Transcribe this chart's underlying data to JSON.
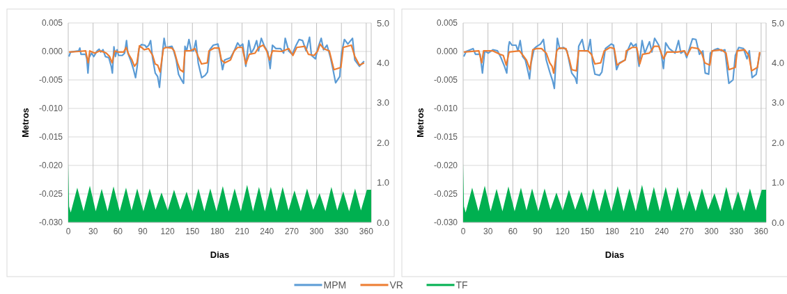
{
  "chart_data": [
    {
      "type": "line",
      "xlabel": "Dias",
      "ylabel": "Metros",
      "xlim": [
        0,
        366
      ],
      "xticks": [
        0,
        30,
        60,
        90,
        120,
        150,
        180,
        210,
        240,
        270,
        300,
        330,
        360
      ],
      "ylim": [
        -0.03,
        0.005
      ],
      "yticks": [
        {
          "value": -0.03,
          "label": "-0.030"
        },
        {
          "value": -0.025,
          "label": "-0.025"
        },
        {
          "value": -0.02,
          "label": "-0.020"
        },
        {
          "value": -0.015,
          "label": "-0.015"
        },
        {
          "value": -0.01,
          "label": "-0.010"
        },
        {
          "value": -0.005,
          "label": "-0.005"
        },
        {
          "value": 0,
          "label": "0.000"
        },
        {
          "value": 0.005,
          "label": "0.005"
        }
      ],
      "y2lim": [
        0,
        5
      ],
      "y2ticks": [
        {
          "value": 0,
          "label": "0.0"
        },
        {
          "value": 1,
          "label": "1.0"
        },
        {
          "value": 2,
          "label": "2.0"
        },
        {
          "value": 3,
          "label": "3.0"
        },
        {
          "value": 4,
          "label": "4.0"
        },
        {
          "value": 5,
          "label": "5.0"
        }
      ],
      "grid": true,
      "legend": "bottom",
      "series": [
        {
          "name": "TF",
          "type": "area",
          "axis": "y2",
          "color": "#00b050",
          "x": [
            0,
            1,
            3,
            10.9,
            18.5,
            26.1,
            33.2,
            40.4,
            47.5,
            54.7,
            62.2,
            69.8,
            76.5,
            83.3,
            90.8,
            98.4,
            105.5,
            112.7,
            120.2,
            127.8,
            135.4,
            143,
            150.1,
            157.3,
            164.4,
            171.6,
            179.1,
            186.7,
            193.8,
            201,
            208.5,
            216.1,
            223.2,
            230.4,
            237.5,
            244.7,
            251.8,
            259,
            266.1,
            273.3,
            280.9,
            288.5,
            296,
            303.6,
            310.7,
            317.9,
            325,
            332.2,
            339.3,
            346.5,
            353.6,
            360.8,
            366
          ],
          "values": [
            1.48,
            0.4,
            0.25,
            0.87,
            0.28,
            0.92,
            0.28,
            0.84,
            0.28,
            0.9,
            0.28,
            0.87,
            0.3,
            0.85,
            0.28,
            0.85,
            0.32,
            0.75,
            0.3,
            0.82,
            0.32,
            0.77,
            0.28,
            0.85,
            0.28,
            0.85,
            0.28,
            0.91,
            0.28,
            0.85,
            0.28,
            0.94,
            0.28,
            0.89,
            0.28,
            0.89,
            0.28,
            0.89,
            0.3,
            0.8,
            0.28,
            0.85,
            0.32,
            0.73,
            0.28,
            0.89,
            0.3,
            0.78,
            0.28,
            0.85,
            0.3,
            0.82,
            0.82
          ]
        },
        {
          "name": "MPM",
          "color": "#5b9bd5",
          "x": [
            0.8,
            2.8,
            12.6,
            14,
            15.4,
            21,
            22.4,
            23.8,
            25.2,
            28,
            30.8,
            35,
            37.3,
            39.2,
            42,
            44.9,
            49,
            51.9,
            53.3,
            55.2,
            56.9,
            58.9,
            60.8,
            65.3,
            68.1,
            70.4,
            72,
            75.7,
            78.5,
            81.3,
            83.3,
            85.5,
            88.3,
            92.5,
            94.5,
            97.3,
            99.5,
            101.8,
            105.1,
            108,
            110.2,
            112.1,
            114.1,
            115.8,
            117.7,
            122,
            125.3,
            127,
            130.4,
            133.2,
            136,
            139.3,
            141,
            143,
            145.8,
            148.6,
            151.4,
            154.2,
            157,
            161.2,
            165.4,
            168.2,
            171,
            175.2,
            180.8,
            183.6,
            186.4,
            189,
            196,
            200.5,
            204.6,
            207.5,
            210.8,
            214.5,
            218.1,
            220.9,
            224.3,
            227.6,
            229.9,
            233.2,
            237,
            241.1,
            243.9,
            246.7,
            250.9,
            256.5,
            260.2,
            262.1,
            266.3,
            270.5,
            274.7,
            278.9,
            283.1,
            287.3,
            291.5,
            293.8,
            298.6,
            301.4,
            305.6,
            308.4,
            312.6,
            316.8,
            319.6,
            323,
            328,
            330.2,
            333.6,
            337.8,
            343.4,
            346.2,
            351.8,
            357.4
          ],
          "values": [
            -0.0009,
            -0.0001,
            0.0001,
            0.0006,
            -0.0005,
            -0.0005,
            -0.0013,
            -0.0038,
            -0.0011,
            -0.0003,
            -0.0009,
            0.0001,
            0.0004,
            -0.0001,
            0.0003,
            -0.0009,
            -0.0011,
            -0.0026,
            -0.0038,
            0.0008,
            -0.0009,
            0.0003,
            -0.0007,
            -0.0007,
            -0.0003,
            0.0019,
            -0.0003,
            -0.0017,
            -0.003,
            -0.0046,
            -0.0026,
            0.0005,
            0.0012,
            0.0011,
            0.0007,
            0.0011,
            0.0019,
            -0.0011,
            -0.0038,
            -0.0044,
            -0.0063,
            -0.0032,
            0.0001,
            0.0023,
            0.0007,
            0.0008,
            0.0009,
            0.0003,
            -0.0015,
            -0.004,
            -0.0048,
            -0.0056,
            0.0009,
            0.0001,
            0.0021,
            0.0001,
            0.0001,
            0.0019,
            -0.002,
            -0.0046,
            -0.0042,
            -0.0036,
            0.0003,
            0.0011,
            0.0013,
            -0.0007,
            -0.0032,
            -0.0015,
            -0.0011,
            0.0001,
            0.0015,
            0.0009,
            0.0013,
            -0.0026,
            0.0019,
            -0.0003,
            0.0005,
            0.0019,
            0.0001,
            0.0023,
            0.0009,
            -0.0001,
            -0.003,
            0.0011,
            0.0005,
            0.0005,
            -0.0003,
            0.0023,
            0.0001,
            -0.0005,
            0.0009,
            0.0021,
            0.0019,
            0.0001,
            0.0025,
            -0.0007,
            -0.0013,
            0.0005,
            0.0023,
            0.0003,
            0.0011,
            -0.0011,
            -0.003,
            -0.0055,
            -0.0044,
            -0.0003,
            0.0021,
            0.0013,
            0.0023,
            -0.0015,
            -0.0026,
            -0.0017
          ]
        },
        {
          "name": "VR",
          "color": "#ed7d31",
          "x": [
            1,
            13,
            21,
            24,
            26,
            32,
            38,
            43,
            46,
            50,
            53,
            56,
            60,
            67,
            70,
            73,
            77,
            80,
            83,
            86,
            92,
            97,
            102,
            105,
            108,
            111,
            113,
            115,
            118,
            125,
            128,
            132,
            135,
            139,
            141,
            147,
            153,
            157,
            161,
            168,
            170,
            176.6,
            182.2,
            185,
            189,
            196,
            200.5,
            204.6,
            210.3,
            214.5,
            218.7,
            225.7,
            229.9,
            235.5,
            239.7,
            243.3,
            246.7,
            257.9,
            266.3,
            271.4,
            276.1,
            285.9,
            290.1,
            297.1,
            301.4,
            304.2,
            308.4,
            315.4,
            321,
            329.4,
            332.2,
            342,
            346.2,
            351.8,
            357.4
          ],
          "values": [
            -0.0001,
            0,
            0.0001,
            -0.002,
            0.0001,
            -0.0003,
            0.0001,
            -0.0001,
            -0.0003,
            -0.0009,
            -0.002,
            0.0001,
            -0.0001,
            -0.0001,
            0.0007,
            -0.0005,
            -0.0015,
            -0.0026,
            -0.002,
            0.001,
            0.0003,
            0.0005,
            -0.0007,
            -0.0022,
            -0.0024,
            -0.0036,
            -0.0015,
            0.0005,
            0.0007,
            0.0006,
            0.0001,
            -0.002,
            -0.0032,
            -0.0036,
            0.0001,
            0.0001,
            0.0005,
            -0.0009,
            -0.0022,
            -0.002,
            0.0001,
            0.0006,
            0.0006,
            -0.0015,
            -0.002,
            -0.0015,
            0.0001,
            0.0007,
            0.0007,
            -0.0022,
            -0.0005,
            -0.0003,
            0.0007,
            0.0011,
            0.0001,
            -0.0015,
            0.0001,
            0,
            0.0005,
            -0.0007,
            0.0007,
            0.0009,
            -0.0005,
            -0.0007,
            0.0001,
            0.0013,
            0.0005,
            0.0001,
            -0.0032,
            -0.0028,
            0.0007,
            0.0011,
            -0.0009,
            -0.0024,
            -0.002
          ]
        }
      ]
    },
    {
      "type": "line",
      "xlabel": "Dias",
      "ylabel": "Metros",
      "xlim": [
        0,
        366
      ],
      "xticks": [
        0,
        30,
        60,
        90,
        120,
        150,
        180,
        210,
        240,
        270,
        300,
        330,
        360
      ],
      "ylim": [
        -0.03,
        0.005
      ],
      "yticks": [
        {
          "value": -0.03,
          "label": "-0.030"
        },
        {
          "value": -0.025,
          "label": "-0.025"
        },
        {
          "value": -0.02,
          "label": "-0.020"
        },
        {
          "value": -0.015,
          "label": "-0.015"
        },
        {
          "value": -0.01,
          "label": "-0.010"
        },
        {
          "value": -0.005,
          "label": "-0.005"
        },
        {
          "value": 0,
          "label": "0.000"
        },
        {
          "value": 0.005,
          "label": "0.005"
        }
      ],
      "y2lim": [
        0,
        5
      ],
      "y2ticks": [
        {
          "value": 0,
          "label": "0.0"
        },
        {
          "value": 1,
          "label": "1.0"
        },
        {
          "value": 2,
          "label": "2.0"
        },
        {
          "value": 3,
          "label": "3.0"
        },
        {
          "value": 4,
          "label": "4.0"
        },
        {
          "value": 5,
          "label": "5.0"
        }
      ],
      "grid": true,
      "series": [
        {
          "type": "area",
          "axis": "y2",
          "color": "#00b050",
          "x": [
            0,
            1,
            3,
            10.9,
            18.5,
            26.1,
            33.2,
            40.4,
            47.5,
            54.7,
            62.2,
            69.8,
            76.5,
            83.3,
            90.8,
            98.4,
            105.5,
            112.7,
            120.2,
            127.8,
            135.4,
            143,
            150.1,
            157.3,
            164.4,
            171.6,
            179.1,
            186.7,
            193.8,
            201,
            208.5,
            216.1,
            223.2,
            230.4,
            237.5,
            244.7,
            251.8,
            259,
            266.1,
            273.3,
            280.9,
            288.5,
            296,
            303.6,
            310.7,
            317.9,
            325,
            332.2,
            339.3,
            346.5,
            353.6,
            360.8,
            366
          ],
          "values": [
            1.48,
            0.4,
            0.25,
            0.87,
            0.28,
            0.92,
            0.28,
            0.84,
            0.28,
            0.9,
            0.28,
            0.87,
            0.3,
            0.85,
            0.28,
            0.85,
            0.32,
            0.75,
            0.3,
            0.82,
            0.32,
            0.77,
            0.28,
            0.85,
            0.28,
            0.85,
            0.28,
            0.91,
            0.28,
            0.85,
            0.28,
            0.94,
            0.28,
            0.89,
            0.28,
            0.89,
            0.28,
            0.89,
            0.3,
            0.8,
            0.28,
            0.85,
            0.32,
            0.73,
            0.28,
            0.89,
            0.3,
            0.78,
            0.28,
            0.85,
            0.3,
            0.82,
            0.82
          ]
        },
        {
          "color": "#5b9bd5",
          "x": [
            0.8,
            3.6,
            12,
            14.9,
            20.5,
            23.3,
            26.1,
            30.3,
            35.9,
            41.5,
            45.7,
            49.9,
            52.7,
            54.9,
            56,
            58.9,
            63.9,
            66.2,
            68.9,
            71.8,
            75.1,
            78.5,
            80.2,
            82.1,
            85.8,
            89.1,
            93.4,
            97,
            100.4,
            104.6,
            108.2,
            110.2,
            112.1,
            113.8,
            116.6,
            121.4,
            125.5,
            128.4,
            131.2,
            135.4,
            137.4,
            139.6,
            143.8,
            146.6,
            150.8,
            153.6,
            156.4,
            159.2,
            164.8,
            167.6,
            171.9,
            178.9,
            181.7,
            185.3,
            188.7,
            195.7,
            198.5,
            202.7,
            205.5,
            208.9,
            212.5,
            216.2,
            219.5,
            225.1,
            228,
            231.3,
            236.3,
            239.2,
            242,
            244.7,
            249,
            256,
            260.2,
            263,
            267.2,
            270,
            274.2,
            277,
            281.2,
            285.4,
            289.6,
            292.4,
            296.6,
            298.6,
            303.6,
            307.8,
            312,
            316.2,
            321,
            326,
            328.8,
            333,
            338.7,
            342.9,
            345.7,
            349.1,
            354.1,
            358.3
          ],
          "values": [
            -0.0009,
            0,
            0.0005,
            -0.0005,
            -0.0005,
            -0.0038,
            0.0001,
            -0.0003,
            0.0003,
            0.0001,
            -0.0011,
            -0.0026,
            -0.0038,
            0.0009,
            0.0017,
            0.0011,
            0.0011,
            0.0001,
            0.0019,
            -0.0009,
            -0.0015,
            -0.0036,
            -0.0048,
            -0.002,
            0.0005,
            0.0009,
            0.0013,
            0.0021,
            -0.0015,
            -0.0036,
            -0.0052,
            -0.0065,
            -0.0015,
            0.0023,
            0.0005,
            0.0007,
            0.0001,
            -0.002,
            -0.0038,
            -0.0046,
            -0.0056,
            0.0009,
            0.0021,
            0.0001,
            0.0001,
            0.0021,
            -0.002,
            -0.004,
            -0.0042,
            -0.0036,
            0.0005,
            0.0013,
            0.0011,
            -0.0032,
            -0.002,
            -0.0015,
            0.0001,
            0.0015,
            0.0009,
            0.0013,
            -0.0026,
            0.0019,
            -0.0003,
            0.0017,
            -0.0001,
            0.0023,
            0.0011,
            -0.0003,
            -0.003,
            0.0015,
            0.0005,
            -0.0003,
            0.0019,
            -0.0003,
            0.0001,
            -0.0011,
            0.0009,
            0.0022,
            0.0021,
            -0.0005,
            0.0001,
            -0.0038,
            -0.004,
            -0.0003,
            0.0003,
            0.0005,
            0.0001,
            0.0003,
            -0.0056,
            -0.005,
            -0.0007,
            0.0007,
            0.0005,
            -0.0013,
            0.0001,
            -0.0046,
            -0.004,
            -0.0003
          ]
        },
        {
          "color": "#ed7d31",
          "x": [
            0.8,
            19,
            22.4,
            24.7,
            35.9,
            44.3,
            48.5,
            52.1,
            55.5,
            68.1,
            72.3,
            76.5,
            80.7,
            84.1,
            89.1,
            94.7,
            100.4,
            104.6,
            107.4,
            109.4,
            113,
            115.8,
            124.2,
            128.4,
            131.2,
            136.8,
            139.6,
            150.8,
            155,
            159.2,
            166.2,
            170.5,
            177.5,
            182.5,
            185.9,
            190.1,
            195.7,
            197.1,
            204.1,
            209.7,
            213.4,
            216.8,
            225.1,
            230.8,
            236.3,
            242,
            246.2,
            258.8,
            267.2,
            270.6,
            275.6,
            284,
            288.2,
            291.9,
            298,
            300.8,
            312,
            317.6,
            321,
            328.8,
            331.1,
            340.1,
            345.1,
            348.5,
            355.5,
            358.3
          ],
          "values": [
            -0.0001,
            0.0001,
            -0.002,
            0.0001,
            0.0001,
            -0.0005,
            -0.0007,
            -0.0024,
            -0.0001,
            0.0001,
            -0.0007,
            -0.0015,
            -0.0032,
            0.0003,
            0.0005,
            0.0005,
            -0.0003,
            -0.002,
            -0.0026,
            -0.0038,
            0.0001,
            0.0006,
            0.0005,
            -0.0015,
            -0.0032,
            -0.0034,
            0.0001,
            0.0001,
            -0.0005,
            -0.0022,
            -0.002,
            0.0001,
            0.0007,
            0.0005,
            -0.0024,
            -0.002,
            -0.0015,
            0.0001,
            0.0007,
            0.0007,
            -0.0022,
            -0.0005,
            -0.0003,
            0.0009,
            0.0009,
            -0.0013,
            -0.0001,
            -0.0001,
            0.0001,
            -0.0007,
            0.0007,
            0.0005,
            -0.0003,
            -0.002,
            -0.0024,
            0.0001,
            0.0003,
            -0.0003,
            -0.0032,
            -0.0028,
            0.0001,
            0.0003,
            -0.0007,
            -0.0034,
            -0.0028,
            -0.0001
          ]
        }
      ]
    }
  ]
}
